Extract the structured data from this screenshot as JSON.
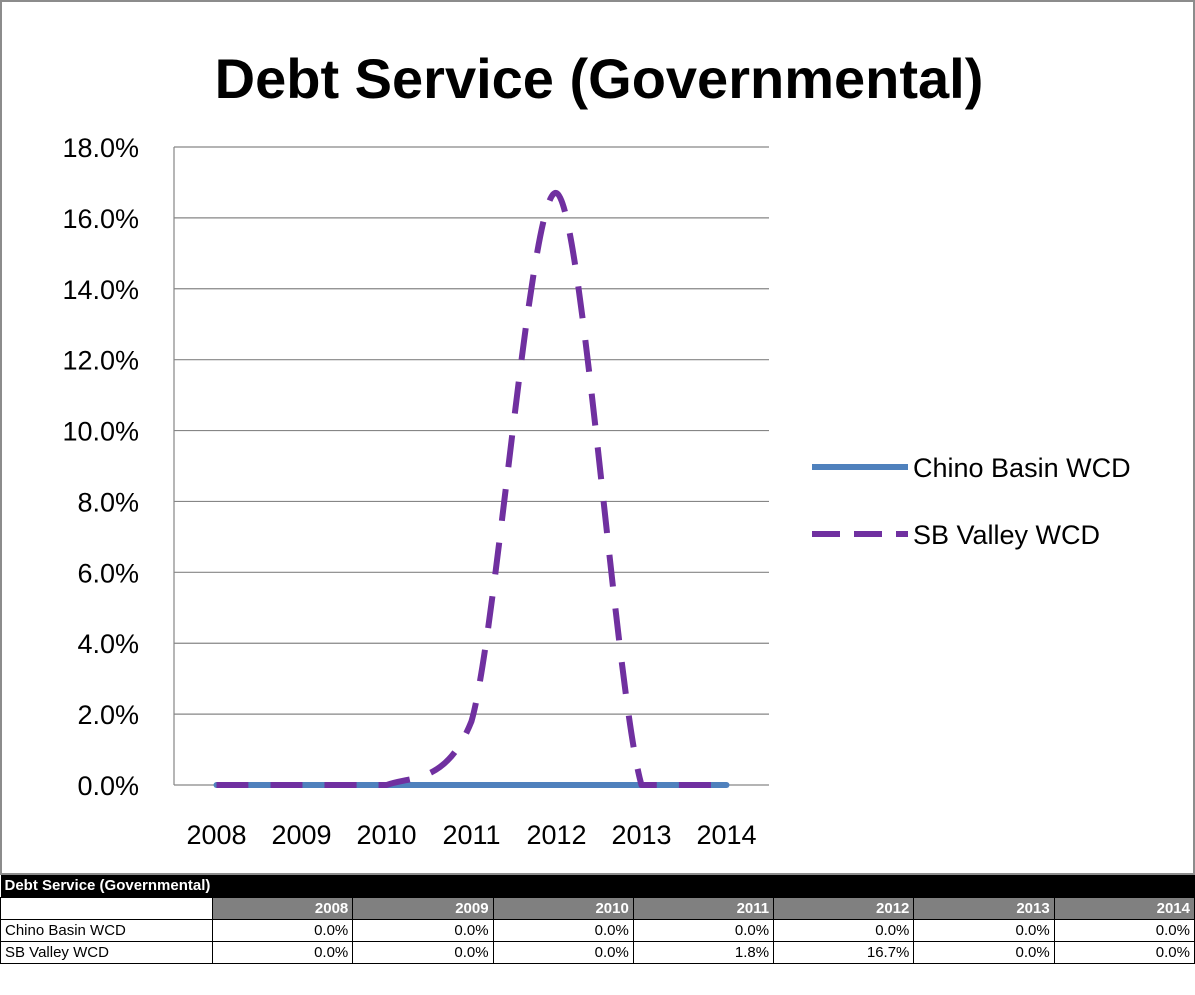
{
  "chart_data": {
    "type": "line",
    "title": "Debt Service (Governmental)",
    "categories": [
      "2008",
      "2009",
      "2010",
      "2011",
      "2012",
      "2013",
      "2014"
    ],
    "series": [
      {
        "name": "Chino Basin WCD",
        "values": [
          0.0,
          0.0,
          0.0,
          0.0,
          0.0,
          0.0,
          0.0
        ],
        "color": "#4F81BD",
        "style": "solid"
      },
      {
        "name": "SB Valley WCD",
        "values": [
          0.0,
          0.0,
          0.0,
          1.8,
          16.7,
          0.0,
          0.0
        ],
        "color": "#7030A0",
        "style": "dashed"
      }
    ],
    "ylim": [
      0,
      18
    ],
    "yticks": [
      "0.0%",
      "2.0%",
      "4.0%",
      "6.0%",
      "8.0%",
      "10.0%",
      "12.0%",
      "14.0%",
      "16.0%",
      "18.0%"
    ],
    "grid": true,
    "legend": "right"
  },
  "table": {
    "title": "Debt Service (Governmental)",
    "columns": [
      "2008",
      "2009",
      "2010",
      "2011",
      "2012",
      "2013",
      "2014"
    ],
    "rows": [
      {
        "name": "Chino Basin WCD",
        "cells": [
          "0.0%",
          "0.0%",
          "0.0%",
          "0.0%",
          "0.0%",
          "0.0%",
          "0.0%"
        ]
      },
      {
        "name": "SB Valley WCD",
        "cells": [
          "0.0%",
          "0.0%",
          "0.0%",
          "1.8%",
          "16.7%",
          "0.0%",
          "0.0%"
        ]
      }
    ]
  }
}
